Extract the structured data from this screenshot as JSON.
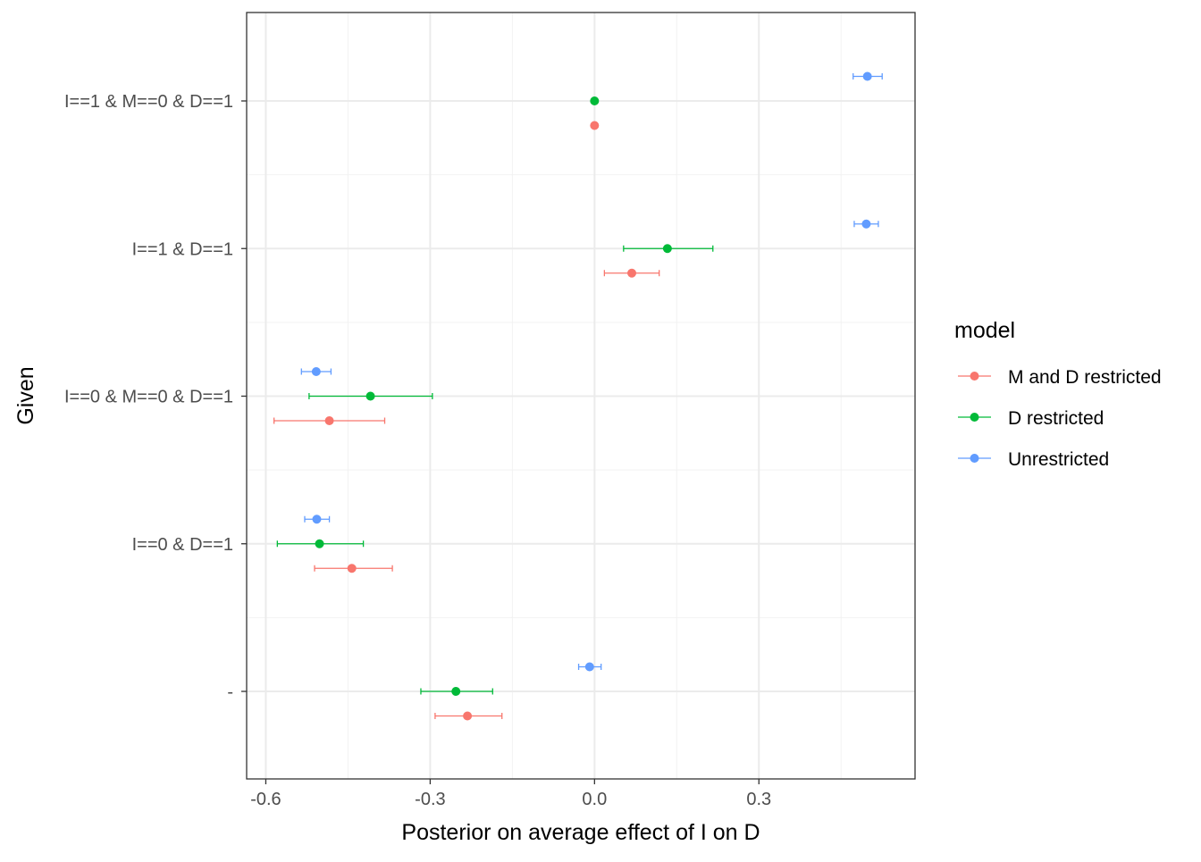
{
  "chart_data": {
    "type": "scatter",
    "subtype": "dot-and-whisker",
    "xlabel": "Posterior on average effect of I on D",
    "ylabel": "Given",
    "xlim": [
      -0.635,
      0.585
    ],
    "x_ticks": [
      -0.6,
      -0.3,
      0.0,
      0.3
    ],
    "x_tick_labels": [
      "-0.6",
      "-0.3",
      "0.0",
      "0.3"
    ],
    "categories": [
      "I==1 & M==0 & D==1",
      "I==1 & D==1",
      "I==0 & M==0 & D==1",
      "I==0 & D==1",
      "-"
    ],
    "grid": true,
    "legend": {
      "title": "model",
      "position": "right",
      "entries": [
        "M and D restricted",
        "D restricted",
        "Unrestricted"
      ]
    },
    "series": [
      {
        "name": "M and D restricted",
        "color": "#F8766D",
        "points": [
          {
            "given": "I==1 & M==0 & D==1",
            "mean": 0.0,
            "low": 0.0,
            "high": 0.0
          },
          {
            "given": "I==1 & D==1",
            "mean": 0.068,
            "low": 0.018,
            "high": 0.118
          },
          {
            "given": "I==0 & M==0 & D==1",
            "mean": -0.484,
            "low": -0.585,
            "high": -0.383
          },
          {
            "given": "I==0 & D==1",
            "mean": -0.443,
            "low": -0.511,
            "high": -0.369
          },
          {
            "given": "-",
            "mean": -0.232,
            "low": -0.291,
            "high": -0.169
          }
        ]
      },
      {
        "name": "D restricted",
        "color": "#00BA38",
        "points": [
          {
            "given": "I==1 & M==0 & D==1",
            "mean": 0.0,
            "low": 0.0,
            "high": 0.0
          },
          {
            "given": "I==1 & D==1",
            "mean": 0.133,
            "low": 0.053,
            "high": 0.216
          },
          {
            "given": "I==0 & M==0 & D==1",
            "mean": -0.409,
            "low": -0.521,
            "high": -0.296
          },
          {
            "given": "I==0 & D==1",
            "mean": -0.502,
            "low": -0.579,
            "high": -0.422
          },
          {
            "given": "-",
            "mean": -0.253,
            "low": -0.317,
            "high": -0.186
          }
        ]
      },
      {
        "name": "Unrestricted",
        "color": "#619CFF",
        "points": [
          {
            "given": "I==1 & M==0 & D==1",
            "mean": 0.498,
            "low": 0.472,
            "high": 0.525
          },
          {
            "given": "I==1 & D==1",
            "mean": 0.496,
            "low": 0.474,
            "high": 0.518
          },
          {
            "given": "I==0 & M==0 & D==1",
            "mean": -0.508,
            "low": -0.535,
            "high": -0.481
          },
          {
            "given": "I==0 & D==1",
            "mean": -0.507,
            "low": -0.529,
            "high": -0.484
          },
          {
            "given": "-",
            "mean": -0.009,
            "low": -0.029,
            "high": 0.012
          }
        ]
      }
    ]
  }
}
